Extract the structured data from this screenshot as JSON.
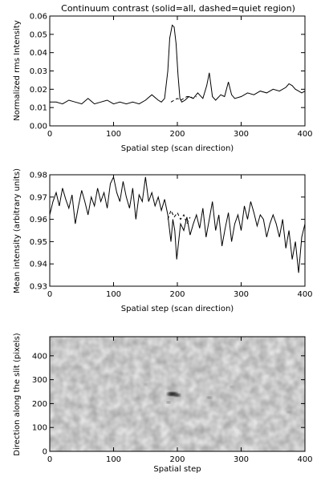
{
  "chart_data": [
    {
      "type": "line",
      "title": "Continuum contrast (solid=all, dashed=quiet region)",
      "xlabel": "Spatial step (scan direction)",
      "ylabel": "Normalized rms Intensity",
      "xlim": [
        0,
        400
      ],
      "ylim": [
        0,
        0.06
      ],
      "xticks": [
        0,
        100,
        200,
        300,
        400
      ],
      "yticks": [
        0.0,
        0.01,
        0.02,
        0.03,
        0.04,
        0.05,
        0.06
      ],
      "ytick_labels": [
        "0.00",
        "0.01",
        "0.02",
        "0.03",
        "0.04",
        "0.05",
        "0.06"
      ],
      "series": [
        {
          "line_style": "solid",
          "x": [
            0,
            10,
            20,
            30,
            40,
            50,
            60,
            70,
            80,
            90,
            100,
            110,
            120,
            130,
            140,
            150,
            160,
            170,
            175,
            180,
            185,
            188,
            192,
            195,
            198,
            201,
            204,
            207,
            212,
            218,
            225,
            232,
            240,
            246,
            250,
            255,
            260,
            268,
            274,
            280,
            285,
            290,
            300,
            310,
            320,
            330,
            340,
            350,
            360,
            370,
            375,
            380,
            385,
            390,
            395,
            400
          ],
          "y": [
            0.013,
            0.013,
            0.012,
            0.014,
            0.013,
            0.012,
            0.015,
            0.012,
            0.013,
            0.014,
            0.012,
            0.013,
            0.012,
            0.013,
            0.012,
            0.014,
            0.017,
            0.014,
            0.013,
            0.015,
            0.03,
            0.048,
            0.055,
            0.054,
            0.045,
            0.028,
            0.015,
            0.013,
            0.014,
            0.016,
            0.015,
            0.018,
            0.015,
            0.022,
            0.029,
            0.016,
            0.014,
            0.017,
            0.016,
            0.024,
            0.017,
            0.015,
            0.016,
            0.018,
            0.017,
            0.019,
            0.018,
            0.02,
            0.019,
            0.021,
            0.023,
            0.022,
            0.02,
            0.019,
            0.018,
            0.019
          ]
        },
        {
          "line_style": "dashed",
          "x": [
            190,
            195,
            200,
            205,
            210,
            215,
            220,
            225,
            230
          ],
          "y": [
            0.013,
            0.014,
            0.015,
            0.014,
            0.015,
            0.016,
            0.016,
            0.015,
            0.016
          ]
        }
      ]
    },
    {
      "type": "line",
      "xlabel": "Spatial step (scan direction)",
      "ylabel": "Mean intensity (arbitrary units)",
      "xlim": [
        0,
        400
      ],
      "ylim": [
        0.93,
        0.98
      ],
      "xticks": [
        0,
        100,
        200,
        300,
        400
      ],
      "yticks": [
        0.93,
        0.94,
        0.95,
        0.96,
        0.97,
        0.98
      ],
      "ytick_labels": [
        "0.93",
        "0.94",
        "0.95",
        "0.96",
        "0.97",
        "0.98"
      ],
      "series": [
        {
          "line_style": "solid",
          "x": [
            0,
            5,
            10,
            15,
            20,
            25,
            30,
            35,
            40,
            45,
            50,
            55,
            60,
            65,
            70,
            75,
            80,
            85,
            90,
            95,
            100,
            105,
            110,
            115,
            120,
            125,
            130,
            135,
            140,
            145,
            150,
            155,
            160,
            165,
            170,
            175,
            180,
            185,
            190,
            193,
            196,
            199,
            202,
            205,
            210,
            215,
            220,
            225,
            230,
            235,
            240,
            245,
            250,
            255,
            260,
            265,
            270,
            275,
            280,
            285,
            290,
            295,
            300,
            305,
            310,
            315,
            320,
            325,
            330,
            335,
            340,
            345,
            350,
            355,
            360,
            365,
            370,
            375,
            380,
            385,
            390,
            395,
            400
          ],
          "y": [
            0.962,
            0.968,
            0.972,
            0.966,
            0.974,
            0.969,
            0.965,
            0.971,
            0.958,
            0.966,
            0.973,
            0.968,
            0.962,
            0.97,
            0.966,
            0.974,
            0.968,
            0.972,
            0.965,
            0.976,
            0.979,
            0.972,
            0.968,
            0.977,
            0.97,
            0.965,
            0.974,
            0.96,
            0.971,
            0.968,
            0.979,
            0.968,
            0.972,
            0.966,
            0.97,
            0.964,
            0.969,
            0.962,
            0.95,
            0.96,
            0.955,
            0.942,
            0.95,
            0.958,
            0.955,
            0.961,
            0.953,
            0.958,
            0.962,
            0.956,
            0.965,
            0.952,
            0.96,
            0.968,
            0.955,
            0.962,
            0.948,
            0.956,
            0.963,
            0.95,
            0.958,
            0.962,
            0.955,
            0.966,
            0.96,
            0.968,
            0.963,
            0.957,
            0.962,
            0.96,
            0.952,
            0.958,
            0.962,
            0.958,
            0.952,
            0.96,
            0.947,
            0.955,
            0.942,
            0.95,
            0.936,
            0.952,
            0.958
          ]
        },
        {
          "line_style": "dashed",
          "x": [
            185,
            190,
            195,
            200,
            205,
            210,
            215,
            220
          ],
          "y": [
            0.96,
            0.964,
            0.961,
            0.963,
            0.96,
            0.962,
            0.958,
            0.961
          ]
        }
      ]
    },
    {
      "type": "heatmap",
      "xlabel": "Spatial step",
      "ylabel": "Direction along the slit (pixels)",
      "xlim": [
        0,
        400
      ],
      "ylim": [
        0,
        480
      ],
      "xticks": [
        0,
        100,
        200,
        300,
        400
      ],
      "yticks": [
        0,
        100,
        200,
        300,
        400
      ],
      "background_color": "#e4e4e4",
      "dark_features": [
        {
          "x": 192,
          "y": 240,
          "rx": 8,
          "ry": 8,
          "darkness": 0.95
        },
        {
          "x": 200,
          "y": 235,
          "rx": 5,
          "ry": 6,
          "darkness": 0.8
        },
        {
          "x": 186,
          "y": 205,
          "rx": 3,
          "ry": 3,
          "darkness": 0.5
        },
        {
          "x": 250,
          "y": 225,
          "rx": 4,
          "ry": 4,
          "darkness": 0.45
        },
        {
          "x": 285,
          "y": 270,
          "rx": 3,
          "ry": 3,
          "darkness": 0.3
        },
        {
          "x": 150,
          "y": 280,
          "rx": 3,
          "ry": 3,
          "darkness": 0.25
        },
        {
          "x": 375,
          "y": 165,
          "rx": 4,
          "ry": 4,
          "darkness": 0.3
        }
      ]
    }
  ]
}
